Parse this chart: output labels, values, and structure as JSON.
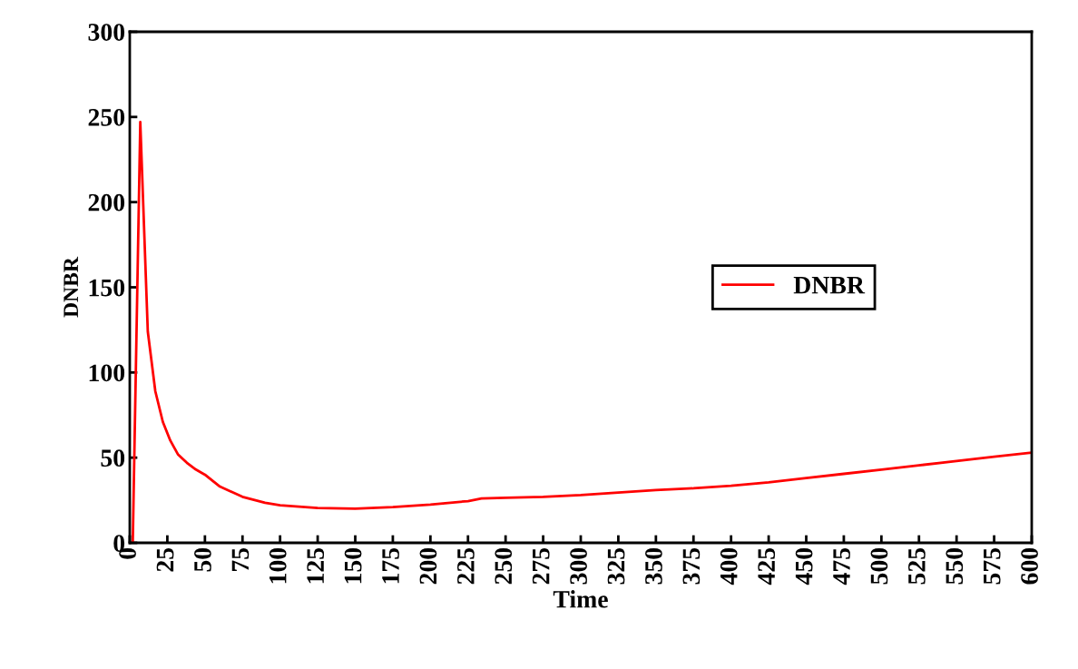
{
  "chart_data": {
    "type": "line",
    "xlabel": "Time",
    "ylabel": "DNBR",
    "series": [
      {
        "name": "DNBR",
        "color": "#ff0000",
        "x": [
          2,
          7,
          12,
          17,
          22,
          27,
          32,
          38,
          44,
          50,
          60,
          75,
          90,
          100,
          125,
          150,
          175,
          200,
          225,
          234,
          250,
          275,
          300,
          325,
          350,
          375,
          400,
          425,
          450,
          475,
          500,
          525,
          550,
          575,
          600
        ],
        "values": [
          0,
          247,
          124,
          89,
          71,
          60,
          52,
          47,
          43,
          40,
          33,
          27,
          23.5,
          22,
          20.5,
          20,
          21,
          22.5,
          24.5,
          26,
          26.5,
          27,
          28,
          29.5,
          31,
          32,
          33.5,
          35.5,
          38,
          40.5,
          43,
          45.5,
          48,
          50.5,
          53
        ]
      }
    ],
    "xlim": [
      0,
      600
    ],
    "xticks": [
      0,
      25,
      50,
      75,
      100,
      125,
      150,
      175,
      200,
      225,
      250,
      275,
      300,
      325,
      350,
      375,
      400,
      425,
      450,
      475,
      500,
      525,
      550,
      575,
      600
    ],
    "ylim": [
      0,
      300
    ],
    "yticks": [
      0,
      50,
      100,
      150,
      200,
      250,
      300
    ],
    "legend": "right",
    "grid": false,
    "marker": "none",
    "line_style": "solid"
  }
}
